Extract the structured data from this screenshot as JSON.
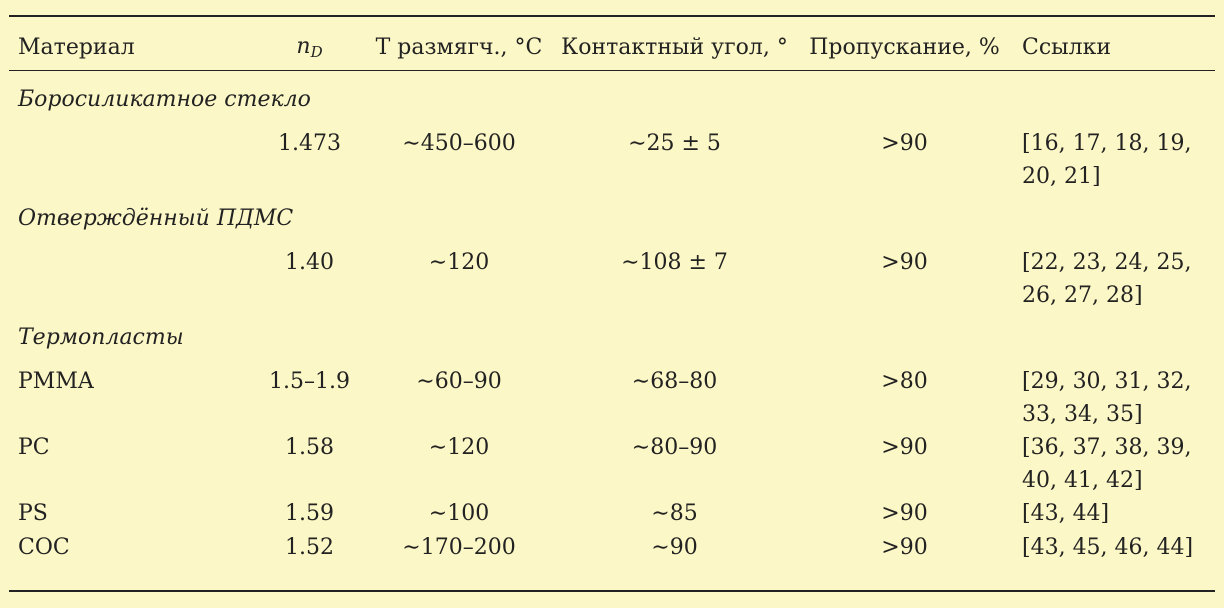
{
  "header": {
    "material": "Материал",
    "nd_base": "n",
    "nd_sub": "D",
    "softening": "T размягч., °C",
    "contact_angle": "Контактный угол, °",
    "transmission": "Пропускание, %",
    "refs": "Ссылки"
  },
  "groups": [
    {
      "title": "Боросиликатное стекло",
      "rows": [
        {
          "material": "",
          "nd": "1.473",
          "softening": "∼450–600",
          "contact_angle": "∼25 ± 5",
          "transmission": ">90",
          "refs_line1": "[16, 17, 18, 19,",
          "refs_line2": "20, 21]"
        }
      ]
    },
    {
      "title": "Отверждённый ПДМС",
      "rows": [
        {
          "material": "",
          "nd": "1.40",
          "softening": "∼120",
          "contact_angle": "∼108 ± 7",
          "transmission": ">90",
          "refs_line1": "[22, 23, 24, 25,",
          "refs_line2": "26, 27, 28]"
        }
      ]
    },
    {
      "title": "Термопласты",
      "rows": [
        {
          "material": "PMMA",
          "nd": "1.5–1.9",
          "softening": "∼60–90",
          "contact_angle": "∼68–80",
          "transmission": ">80",
          "refs_line1": "[29, 30, 31, 32,",
          "refs_line2": "33, 34, 35]"
        },
        {
          "material": "PC",
          "nd": "1.58",
          "softening": "∼120",
          "contact_angle": "∼80–90",
          "transmission": ">90",
          "refs_line1": "[36, 37, 38, 39,",
          "refs_line2": "40, 41, 42]"
        },
        {
          "material": "PS",
          "nd": "1.59",
          "softening": "∼100",
          "contact_angle": "∼85",
          "transmission": ">90",
          "refs_line1": "[43, 44]",
          "refs_line2": ""
        },
        {
          "material": "COC",
          "nd": "1.52",
          "softening": "∼170–200",
          "contact_angle": "∼90",
          "transmission": ">90",
          "refs_line1": "[43, 45, 46, 44]",
          "refs_line2": ""
        }
      ]
    }
  ],
  "colors": {
    "background": "#fcf7c6",
    "text": "#222222"
  }
}
